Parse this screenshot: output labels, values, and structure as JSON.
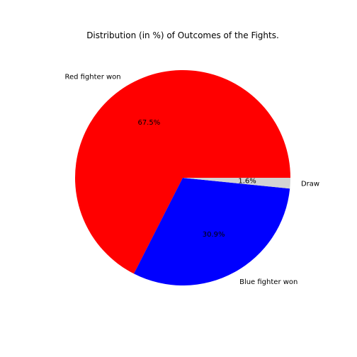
{
  "chart_data": {
    "type": "pie",
    "title": "Distribution (in %) of Outcomes of the Fights.",
    "slices": [
      {
        "label": "Red fighter won",
        "value": 67.5,
        "pct_label": "67.5%",
        "color": "#ff0000"
      },
      {
        "label": "Blue fighter won",
        "value": 30.9,
        "pct_label": "30.9%",
        "color": "#0000ff"
      },
      {
        "label": "Draw",
        "value": 1.6,
        "pct_label": "1.6%",
        "color": "#d3d3d3"
      }
    ],
    "legend": false
  }
}
